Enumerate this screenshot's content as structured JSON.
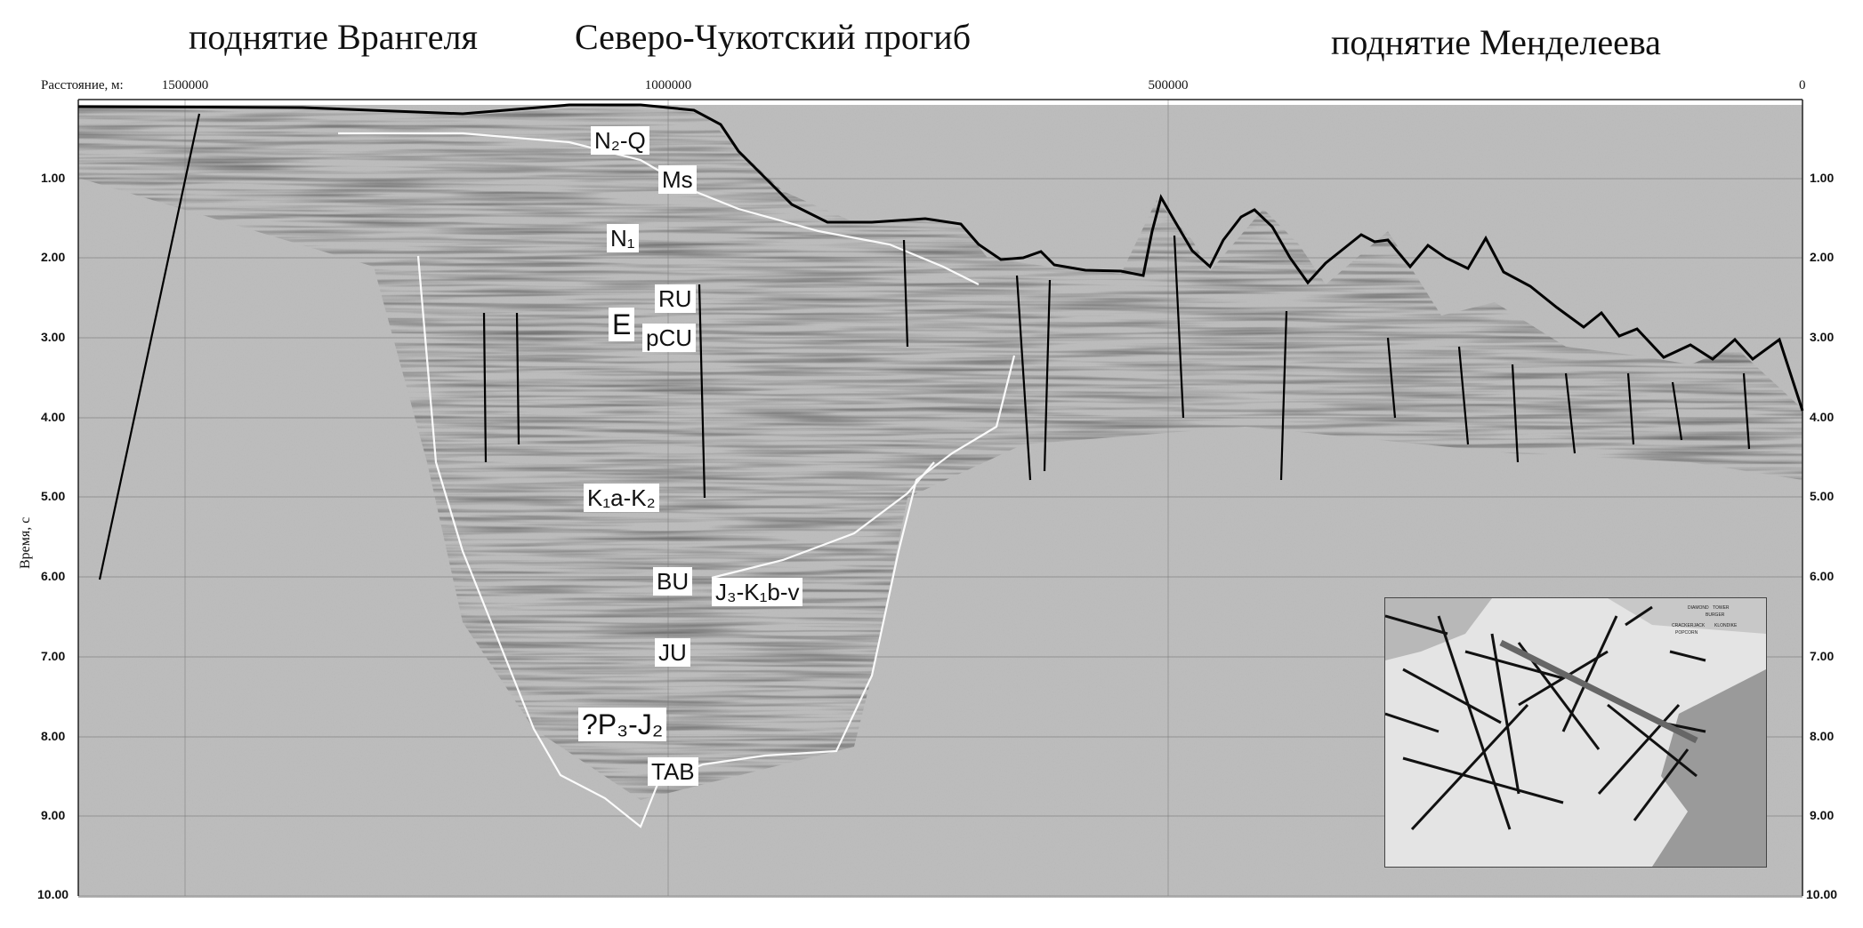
{
  "titles": {
    "left": "поднятие Врангеля",
    "center": "Северо-Чукотский прогиб",
    "right": "поднятие Менделеева"
  },
  "distance_axis": {
    "title": "Расстояние, м:",
    "ticks": [
      "1500000",
      "1000000",
      "500000",
      "0"
    ]
  },
  "time_axis": {
    "title": "Время, с",
    "ticks": [
      "1.00",
      "2.00",
      "3.00",
      "4.00",
      "5.00",
      "6.00",
      "7.00",
      "8.00",
      "9.00",
      "10.00"
    ]
  },
  "horizons": {
    "n2q": "N₂-Q",
    "ms": "Ms",
    "n1": "N₁",
    "ru": "RU",
    "e": "E",
    "pcu": "pCU",
    "k1ak2": "K₁a-K₂",
    "bu": "BU",
    "j3k1bv": "J₃-K₁b-v",
    "ju": "JU",
    "p3j2": "?P₃-J₂",
    "tab": "TAB"
  },
  "inset_map": {
    "labels": [
      "DIAMOND",
      "TOWER",
      "BURGER",
      "CRACKERJACK",
      "KLONDIKE",
      "POPCORN"
    ]
  }
}
